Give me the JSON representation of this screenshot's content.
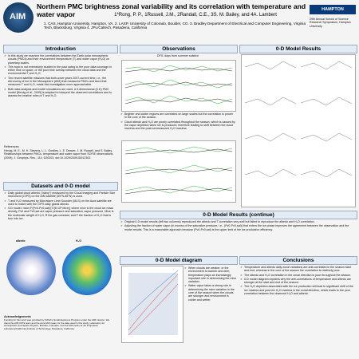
{
  "header": {
    "logo": "AIM",
    "title": "Northern PMC brightness zonal variability and its correlation with temperature and water vapor",
    "authors": "1*Rong, P. P., 1Russell, J.M., 2Randall, C.E., 3S. M. Bailey, and 4A. Lambert",
    "affiliations": "1.    CAS, Hampton University, Hampton, VA.  2. LASP, University of Colorado, Boulder, CO.  3. Bradley Department of Electrical and Computer Engineering, Virginia Tech, Blacksburg, Virginia  4. JPL/Caltech, Pasadena, California",
    "institution": "HAMPTON UNIVERSITY",
    "event": "29th Annual School of Science Research Symposium, Hampton University"
  },
  "introduction": {
    "title": "Introduction",
    "bullets": [
      "In this study we examine the correlations between the Earth polar mesospheric clouds (PMCs) and their environment temperature (T) and water vapor (H₂O) on planetary scales.",
      "This topic is not extensively studied in the past owing to the poor data coverage in either time or space, or the poor time overlap between the cloud data and the environmental T and H₂O.",
      "Two recent satellite missions that both cover years 2007-current time, i.e., the Aeronomy of Ice in the Mesosphere (AIM) that measures PMCs and Aura that measures T and H₂O, made this investigation more approachable.",
      "Both data analysis and model simulations are used. A 0-dimensional (0-D) PMC model [Hervig et al., 2009] is adopted to interpret the observed correlations and to assess the relative roles of T and H₂O."
    ],
    "references_title": "References:",
    "references": "Hervig, M. E., M. H. Stevens, L. L. Gordley, L. E. Deaver, J. M. Russell, and S. Bailey, Relationships between PMCs, temperature and water vapor from SOFIE observations (2009), J. Geophys. Res., 114, D20203, doi:10.1029/2009JD012302."
  },
  "datasets": {
    "title": "Datasets and 0-D model",
    "bullets": [
      "Daily global cloud albedo (\"daisy\") measured by the Cloud Imaging and Particle Size instrument (CIPS) on the AIM satellite (55°N-85°N) is used.",
      "T and H₂O measured by Microwave Limb Sounder (MLS) on the Aura satellite are used to match with the CIPS daily global albedo.",
      "0-D model: mice=F(Pv0-Pv0,sat)/(T/(8·10²·Mice)) where mice is the cloud ice mass density, Pv0 and Pv0,sat are vapor pressure and saturation vapor pressure, Mice is the molecular weight of H₂O, R the gas constant, and F the fraction of H₂O that is turn into ice."
    ],
    "image_labels": [
      "albedo",
      "H₂O"
    ]
  },
  "acknowledgements": {
    "title": "Acknowledgements",
    "text": "Funding for this work was provided by NASA's Small Explorers Program under the AIM mission. We thank the AIM CIPS team and the Aura MLS team for the data used in this study, Laboratory for Atmospheric and Space Physics, Boulder, Colorado, and the MLS team at Jet Propulsion Laboratory/California Institute of Technology, Pasadena, California."
  },
  "observations": {
    "title": "Observations",
    "subtitle": "DFS: days from summer solstice",
    "bullets": [
      "Brighter and colder regions are correlated on large scales but the correlation is poorer in the core of the season.",
      "Cloud albedo and H₂O are poorly correlated throughout the season, which is caused by the vapor depletion when ice is produced, therefore leading to shift between the cloud maxima and the post-ice/measured H₂O maxima."
    ]
  },
  "model_results": {
    "title": "0-D Model Results"
  },
  "model_results_continued": {
    "title": "0-D Model Results (continue)",
    "bullets": [
      "Original 0-D model results (left two columns) reproduced the albedo and T correlation very well but failed to reproduce the albedo and H₂O correlation.",
      "Adjusting the fraction of water vapor (in excess of the saturation pressure, i.e., (Pv0-Pv0,sat)) that enters the ice phase improves the agreement between the observation and the model results. This is a reasonable approach because (Pv0-Pv0,sat) is the upper limit of the ice production efficiency."
    ]
  },
  "model_diagram": {
    "title": "0-D Model diagram",
    "bullets": [
      "When clouds are weaker, or the environment is warmer and drier, temperature plays an increasingly important role in determining the mice variation.",
      "Water vapor takes a strong role in determining the mice variation in the core of the season when the clouds are stronger and environment is colder and wetter."
    ]
  },
  "conclusions": {
    "title": "Conclusions",
    "bullets": [
      "Temperature and albedo daily zonal variations are anti-correlated in the season start and end, whereas in the core of the season the correlation is relatively poor.",
      "The albedo and H₂O correlation in the zonal direction is poor throughout the season.",
      "0-D model diagram explains why the anti-correlations of temperature and albedo are stronger at the start and end of the season.",
      "The H₂O depletion associated with the ice production will lead to significant shift of the ice maxima and post-ice H₂O maxima in the zonal direction, which leads to the poor correlation between the observed H₂O and albedo."
    ]
  }
}
